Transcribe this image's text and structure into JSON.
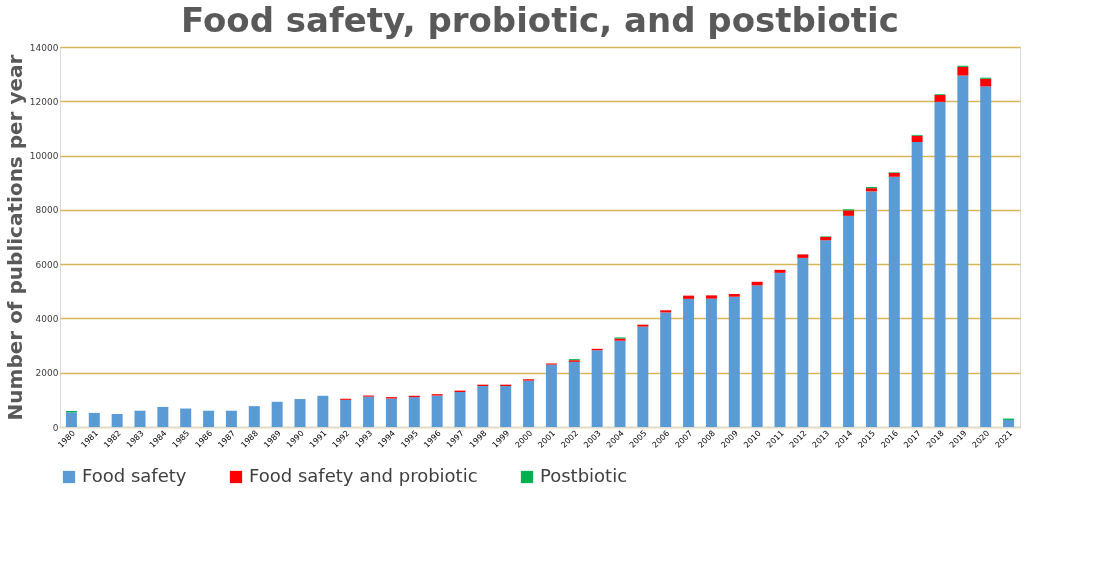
{
  "chart_data": {
    "type": "bar",
    "stacked": true,
    "title": "Food safety, probiotic, and postbiotic",
    "ylabel": "Number of publications per year",
    "categories": [
      "1980",
      "1981",
      "1982",
      "1983",
      "1984",
      "1985",
      "1986",
      "1987",
      "1988",
      "1989",
      "1990",
      "1991",
      "1992",
      "1993",
      "1994",
      "1995",
      "1996",
      "1997",
      "1998",
      "1999",
      "2000",
      "2001",
      "2002",
      "2003",
      "2004",
      "2005",
      "2006",
      "2007",
      "2008",
      "2009",
      "2010",
      "2011",
      "2012",
      "2013",
      "2014",
      "2015",
      "2016",
      "2017",
      "2018",
      "2019",
      "2020",
      "2021"
    ],
    "series": [
      {
        "name": "Food safety",
        "color": "#5b9bd5",
        "values": [
          540,
          520,
          480,
          600,
          740,
          680,
          600,
          600,
          770,
          930,
          1030,
          1150,
          1000,
          1120,
          1050,
          1100,
          1160,
          1290,
          1510,
          1510,
          1710,
          2300,
          2400,
          2830,
          3180,
          3700,
          4220,
          4720,
          4730,
          4800,
          5220,
          5680,
          6230,
          6880,
          7780,
          8680,
          9220,
          10500,
          11980,
          12950,
          12550,
          260
        ]
      },
      {
        "name": "Food safety and probiotic",
        "color": "#ff0000",
        "values": [
          0,
          0,
          0,
          0,
          0,
          0,
          0,
          0,
          0,
          0,
          0,
          0,
          40,
          40,
          50,
          50,
          50,
          50,
          50,
          50,
          50,
          40,
          60,
          50,
          80,
          70,
          80,
          120,
          120,
          100,
          130,
          110,
          130,
          120,
          200,
          120,
          140,
          230,
          250,
          320,
          280,
          0
        ]
      },
      {
        "name": "Postbiotic",
        "color": "#00b050",
        "values": [
          50,
          0,
          0,
          0,
          0,
          0,
          0,
          0,
          0,
          0,
          0,
          0,
          0,
          0,
          0,
          0,
          0,
          0,
          0,
          0,
          0,
          0,
          40,
          0,
          40,
          0,
          0,
          0,
          0,
          0,
          0,
          0,
          0,
          20,
          40,
          40,
          20,
          30,
          30,
          40,
          40,
          50
        ]
      }
    ],
    "ylim": [
      0,
      14000
    ],
    "yticks": [
      0,
      2000,
      4000,
      6000,
      8000,
      10000,
      12000,
      14000
    ],
    "grid": "y",
    "legend": "bottom"
  }
}
